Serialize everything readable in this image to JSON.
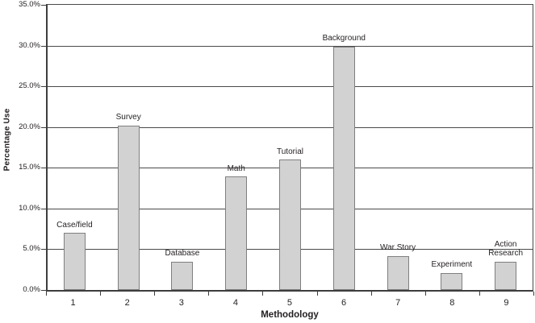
{
  "chart_data": {
    "type": "bar",
    "title": "",
    "xlabel": "Methodology",
    "ylabel": "Percentage Use",
    "categories": [
      "1",
      "2",
      "3",
      "4",
      "5",
      "6",
      "7",
      "8",
      "9"
    ],
    "bar_labels": [
      "Case/field",
      "Survey",
      "Database",
      "Math",
      "Tutorial",
      "Background",
      "War Story",
      "Experiment",
      "Action\nResearch"
    ],
    "values": [
      7.0,
      20.2,
      3.5,
      13.9,
      16.0,
      29.9,
      4.2,
      2.1,
      3.5
    ],
    "ylim": [
      0,
      35
    ],
    "ytick_values": [
      0,
      5,
      10,
      15,
      20,
      25,
      30,
      35
    ],
    "ytick_labels": [
      "0.0%",
      "5.0%",
      "10.0%",
      "15.0%",
      "20.0%",
      "25.0%",
      "30.0%",
      "35.0%"
    ],
    "grid": true,
    "legend": "none",
    "colors": {
      "background": "#ffffff",
      "bar_fill": "#d2d2d2",
      "bar_border": "#7f7f7f",
      "grid_line": "#4a4a4a",
      "axis_line": "#3d3d3d",
      "text": "#231f20"
    }
  }
}
